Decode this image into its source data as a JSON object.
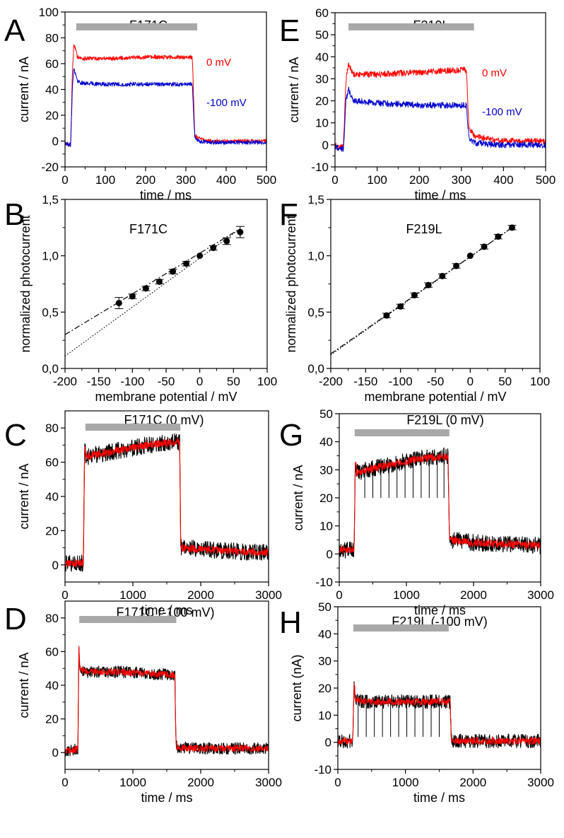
{
  "chart_data": [
    {
      "panel": "A",
      "type": "line",
      "title": "F171C",
      "xlabel": "time / ms",
      "ylabel": "current / nA",
      "xlim": [
        0,
        500
      ],
      "ylim": [
        -20,
        100
      ],
      "xticks": [
        0,
        100,
        200,
        300,
        400,
        500
      ],
      "yticks": [
        -20,
        0,
        20,
        40,
        60,
        80,
        100
      ],
      "stim": [
        28,
        328
      ],
      "series": [
        {
          "name": "0 mV",
          "color": "#ff0000",
          "x": [
            0,
            14,
            18,
            22,
            30,
            40,
            100,
            200,
            300,
            316,
            322,
            330,
            360,
            500
          ],
          "y": [
            -2,
            -3,
            50,
            76,
            66,
            64,
            64,
            65,
            65,
            65,
            5,
            2,
            0,
            0
          ],
          "noise": 1.6
        },
        {
          "name": "-100 mV",
          "color": "#0000cc",
          "x": [
            0,
            14,
            18,
            22,
            30,
            40,
            100,
            200,
            300,
            316,
            322,
            330,
            360,
            500
          ],
          "y": [
            -2,
            -3,
            40,
            57,
            47,
            45,
            44,
            44,
            44,
            44,
            3,
            0,
            -1,
            -1
          ],
          "noise": 1.6
        }
      ]
    },
    {
      "panel": "E",
      "type": "line",
      "title": "F219L",
      "xlabel": "time / ms",
      "ylabel": "current / nA",
      "xlim": [
        0,
        500
      ],
      "ylim": [
        -10,
        60
      ],
      "xticks": [
        0,
        100,
        200,
        300,
        400,
        500
      ],
      "yticks": [
        -10,
        0,
        10,
        20,
        30,
        40,
        50,
        60
      ],
      "stim": [
        32,
        330
      ],
      "series": [
        {
          "name": "0 mV",
          "color": "#ff0000",
          "x": [
            0,
            20,
            26,
            32,
            45,
            100,
            200,
            300,
            312,
            318,
            330,
            380,
            500
          ],
          "y": [
            0,
            -1,
            30,
            36,
            32,
            32,
            33,
            34,
            34,
            8,
            4,
            2,
            1.5
          ],
          "noise": 1.4
        },
        {
          "name": "-100 mV",
          "color": "#0000cc",
          "x": [
            0,
            20,
            26,
            32,
            45,
            100,
            200,
            300,
            312,
            318,
            330,
            380,
            500
          ],
          "y": [
            -1,
            -2,
            20,
            25,
            20,
            19,
            18,
            18,
            18,
            3,
            1,
            0,
            0
          ],
          "noise": 1.4
        }
      ]
    },
    {
      "panel": "B",
      "type": "scatter",
      "title": "F171C",
      "xlabel": "membrane potential / mV",
      "ylabel": "normalized photocurrent",
      "xlim": [
        -200,
        100
      ],
      "ylim": [
        0,
        1.5
      ],
      "xticks": [
        -200,
        -150,
        -100,
        -50,
        0,
        50,
        100
      ],
      "yticks": [
        0,
        0.5,
        1,
        1.5
      ],
      "ytick_labels": [
        "0,0",
        "0,5",
        "1,0",
        "1,5"
      ],
      "points": {
        "x": [
          -120,
          -100,
          -80,
          -60,
          -40,
          -20,
          0,
          20,
          40,
          60
        ],
        "y": [
          0.58,
          0.64,
          0.71,
          0.77,
          0.86,
          0.93,
          1.0,
          1.07,
          1.13,
          1.21
        ],
        "err": [
          0.05,
          0.02,
          0.02,
          0.02,
          0.02,
          0.02,
          0,
          0.02,
          0.03,
          0.05
        ]
      },
      "fits": [
        {
          "style": "dashed",
          "x": [
            -200,
            60
          ],
          "y": [
            0.3,
            1.24
          ]
        },
        {
          "style": "dotted",
          "x": [
            -200,
            60
          ],
          "y": [
            0.11,
            1.24
          ]
        }
      ]
    },
    {
      "panel": "F",
      "type": "scatter",
      "title": "F219L",
      "xlabel": "membrane potential / mV",
      "ylabel": "normalized photocurrent",
      "xlim": [
        -200,
        100
      ],
      "ylim": [
        0,
        1.5
      ],
      "xticks": [
        -200,
        -150,
        -100,
        -50,
        0,
        50,
        100
      ],
      "yticks": [
        0,
        0.5,
        1,
        1.5
      ],
      "ytick_labels": [
        "0,0",
        "0,5",
        "1,0",
        "1,5"
      ],
      "points": {
        "x": [
          -120,
          -100,
          -80,
          -60,
          -40,
          -20,
          0,
          20,
          40,
          60
        ],
        "y": [
          0.47,
          0.55,
          0.65,
          0.74,
          0.82,
          0.91,
          1.0,
          1.08,
          1.17,
          1.25
        ],
        "err": [
          0.02,
          0.02,
          0.02,
          0.02,
          0.02,
          0.02,
          0,
          0.02,
          0.02,
          0.02
        ]
      },
      "fits": [
        {
          "style": "dashed",
          "x": [
            -200,
            60
          ],
          "y": [
            0.13,
            1.25
          ]
        },
        {
          "style": "dotted",
          "x": [
            -200,
            60
          ],
          "y": [
            0.12,
            1.25
          ]
        }
      ]
    },
    {
      "panel": "C",
      "type": "line",
      "title": "F171C (0 mV)",
      "xlabel": "time / ms",
      "ylabel": "current / nA",
      "xlim": [
        0,
        3000
      ],
      "ylim": [
        -10,
        90
      ],
      "xticks": [
        0,
        1000,
        2000,
        3000
      ],
      "yticks": [
        0,
        20,
        40,
        60,
        80
      ],
      "stim": [
        300,
        1700
      ],
      "series": [
        {
          "name": "",
          "color": "#000000",
          "x": [
            0,
            270,
            290,
            310,
            400,
            800,
            1200,
            1690,
            1705,
            1720,
            2000,
            3000
          ],
          "y": [
            1,
            1,
            70,
            63,
            64,
            67,
            70,
            72,
            12,
            10,
            9,
            7
          ],
          "noise": 5
        },
        {
          "name": "",
          "color": "#ff0000",
          "x": [
            0,
            270,
            290,
            310,
            400,
            800,
            1200,
            1690,
            1705,
            1720,
            2000,
            3000
          ],
          "y": [
            1,
            1,
            70,
            63,
            64,
            67,
            70,
            72,
            12,
            10,
            9,
            7
          ],
          "noise": 2.2
        }
      ]
    },
    {
      "panel": "G",
      "type": "line",
      "title": "F219L (0 mV)",
      "xlabel": "time / ms",
      "ylabel": "current / nA",
      "xlim": [
        0,
        3000
      ],
      "ylim": [
        -10,
        50
      ],
      "xticks": [
        0,
        1000,
        2000,
        3000
      ],
      "yticks": [
        -10,
        0,
        10,
        20,
        30,
        40,
        50
      ],
      "stim": [
        230,
        1640
      ],
      "series": [
        {
          "name": "",
          "color": "#000000",
          "x": [
            0,
            220,
            240,
            260,
            400,
            800,
            1200,
            1620,
            1640,
            1660,
            2000,
            3000
          ],
          "y": [
            1.5,
            1.5,
            33,
            29,
            30,
            32,
            34,
            35,
            7,
            5,
            4,
            3
          ],
          "noise": 3,
          "spikes": {
            "x": [
              380,
              500,
              620,
              740,
              860,
              980,
              1100,
              1220,
              1340,
              1460,
              1560
            ],
            "y": 20
          }
        },
        {
          "name": "",
          "color": "#ff0000",
          "x": [
            0,
            220,
            240,
            260,
            400,
            800,
            1200,
            1620,
            1640,
            1660,
            2000,
            3000
          ],
          "y": [
            1.5,
            1.5,
            33,
            29,
            30,
            32,
            34,
            35,
            7,
            5,
            4,
            3
          ],
          "noise": 1.4
        }
      ]
    },
    {
      "panel": "D",
      "type": "line",
      "title": "F171C (-100 mV)",
      "xlabel": "time / ms",
      "ylabel": "current / nA",
      "xlim": [
        0,
        3000
      ],
      "ylim": [
        -10,
        90
      ],
      "xticks": [
        0,
        1000,
        2000,
        3000
      ],
      "yticks": [
        0,
        20,
        40,
        60,
        80
      ],
      "stim": [
        210,
        1640
      ],
      "series": [
        {
          "name": "",
          "color": "#000000",
          "x": [
            0,
            190,
            205,
            220,
            300,
            800,
            1200,
            1620,
            1635,
            1650,
            2000,
            3000
          ],
          "y": [
            1,
            2,
            62,
            50,
            48,
            48,
            47,
            46,
            5,
            3,
            2.5,
            2.5
          ],
          "noise": 3.5
        },
        {
          "name": "",
          "color": "#ff0000",
          "x": [
            0,
            190,
            205,
            220,
            300,
            800,
            1200,
            1620,
            1635,
            1650,
            2000,
            3000
          ],
          "y": [
            1,
            2,
            62,
            50,
            48,
            48,
            47,
            46,
            5,
            3,
            2.5,
            2.5
          ],
          "noise": 2
        }
      ]
    },
    {
      "panel": "H",
      "type": "line",
      "title": "F219L (-100 mV)",
      "xlabel": "time / ms",
      "ylabel": "current (nA)",
      "xlim": [
        0,
        3000
      ],
      "ylim": [
        -10,
        50
      ],
      "xticks": [
        0,
        1000,
        2000,
        3000
      ],
      "yticks": [
        -10,
        0,
        10,
        20,
        30,
        40,
        50
      ],
      "stim": [
        230,
        1640
      ],
      "series": [
        {
          "name": "",
          "color": "#000000",
          "x": [
            0,
            220,
            240,
            260,
            400,
            800,
            1200,
            1660,
            1680,
            1700,
            2000,
            3000
          ],
          "y": [
            0.5,
            0.5,
            21,
            16,
            15,
            15,
            15,
            15,
            1,
            0.5,
            0.5,
            0.5
          ],
          "noise": 2.6,
          "spikes": {
            "x": [
              300,
              420,
              540,
              660,
              780,
              900,
              1020,
              1140,
              1260,
              1380,
              1500,
              1800,
              1900,
              2000
            ],
            "y": 2
          }
        },
        {
          "name": "",
          "color": "#ff0000",
          "x": [
            0,
            220,
            240,
            260,
            400,
            800,
            1200,
            1660,
            1680,
            1700,
            2000,
            3000
          ],
          "y": [
            0.5,
            0.5,
            21,
            16,
            15,
            15,
            15,
            15,
            1,
            0.5,
            0.5,
            0.5
          ],
          "noise": 1.3
        }
      ]
    }
  ],
  "panel_letters": [
    "A",
    "E",
    "B",
    "F",
    "C",
    "G",
    "D",
    "H"
  ],
  "series_labels": {
    "zero": "0 mV",
    "minus100": "-100 mV"
  }
}
